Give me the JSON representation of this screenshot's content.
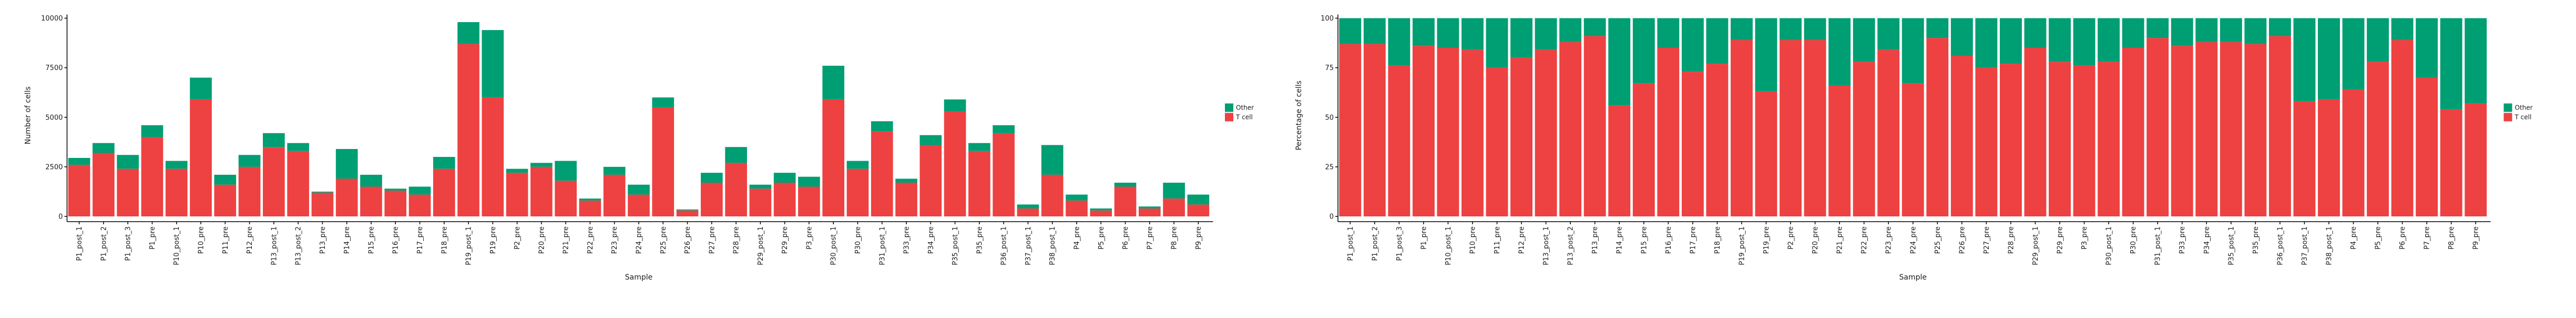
{
  "colors": {
    "other": "#009E73",
    "tcell": "#EE4141",
    "axis": "#000000"
  },
  "chart_data": [
    {
      "type": "bar",
      "stacked": true,
      "xlabel": "Sample",
      "ylabel": "Number of cells",
      "ylim": [
        0,
        10000
      ],
      "yticks": [
        0,
        2500,
        5000,
        7500,
        10000
      ],
      "legend": {
        "placement": "right",
        "entries": [
          "Other",
          "T cell"
        ]
      },
      "categories": [
        "P1_post_1",
        "P1_post_2",
        "P1_post_3",
        "P1_pre",
        "P10_post_1",
        "P10_pre",
        "P11_pre",
        "P12_pre",
        "P13_post_1",
        "P13_post_2",
        "P13_pre",
        "P14_pre",
        "P15_pre",
        "P16_pre",
        "P17_pre",
        "P18_pre",
        "P19_post_1",
        "P19_pre",
        "P2_pre",
        "P20_pre",
        "P21_pre",
        "P22_pre",
        "P23_pre",
        "P24_pre",
        "P25_pre",
        "P26_pre",
        "P27_pre",
        "P28_pre",
        "P29_post_1",
        "P29_pre",
        "P3_pre",
        "P30_post_1",
        "P30_pre",
        "P31_post_1",
        "P33_pre",
        "P34_pre",
        "P35_post_1",
        "P35_pre",
        "P36_post_1",
        "P37_post_1",
        "P38_post_1",
        "P4_pre",
        "P5_pre",
        "P6_pre",
        "P7_pre",
        "P8_pre",
        "P9_pre"
      ],
      "series": [
        {
          "name": "T cell",
          "values": [
            2600,
            3200,
            2400,
            4000,
            2400,
            5900,
            1600,
            2500,
            3500,
            3300,
            1200,
            1900,
            1500,
            1300,
            1100,
            2400,
            8700,
            6000,
            2200,
            2500,
            1800,
            800,
            2100,
            1100,
            5500,
            300,
            1700,
            2700,
            1400,
            1700,
            1500,
            5900,
            2400,
            4300,
            1700,
            3600,
            5300,
            3300,
            4200,
            400,
            2100,
            800,
            300,
            1500,
            400,
            900,
            600
          ]
        },
        {
          "name": "Other",
          "values": [
            350,
            500,
            700,
            600,
            400,
            1100,
            500,
            600,
            700,
            400,
            50,
            1500,
            600,
            100,
            400,
            600,
            1100,
            3400,
            200,
            200,
            1000,
            100,
            400,
            500,
            500,
            50,
            500,
            800,
            200,
            500,
            500,
            1700,
            400,
            500,
            200,
            500,
            600,
            400,
            400,
            200,
            1500,
            300,
            100,
            200,
            100,
            800,
            500
          ]
        }
      ]
    },
    {
      "type": "bar",
      "stacked": true,
      "xlabel": "Sample",
      "ylabel": "Percentage of cells",
      "ylim": [
        0,
        100
      ],
      "yticks": [
        0,
        25,
        50,
        75,
        100
      ],
      "legend": {
        "placement": "right",
        "entries": [
          "Other",
          "T cell"
        ]
      },
      "categories": [
        "P1_post_1",
        "P1_post_2",
        "P1_post_3",
        "P1_pre",
        "P10_post_1",
        "P10_pre",
        "P11_pre",
        "P12_pre",
        "P13_post_1",
        "P13_post_2",
        "P13_pre",
        "P14_pre",
        "P15_pre",
        "P16_pre",
        "P17_pre",
        "P18_pre",
        "P19_post_1",
        "P19_pre",
        "P2_pre",
        "P20_pre",
        "P21_pre",
        "P22_pre",
        "P23_pre",
        "P24_pre",
        "P25_pre",
        "P26_pre",
        "P27_pre",
        "P28_pre",
        "P29_post_1",
        "P29_pre",
        "P3_pre",
        "P30_post_1",
        "P30_pre",
        "P31_post_1",
        "P33_pre",
        "P34_pre",
        "P35_post_1",
        "P35_pre",
        "P36_post_1",
        "P37_post_1",
        "P38_post_1",
        "P4_pre",
        "P5_pre",
        "P6_pre",
        "P7_pre",
        "P8_pre",
        "P9_pre"
      ],
      "series": [
        {
          "name": "T cell",
          "values": [
            87,
            87,
            76,
            86,
            85,
            84,
            75,
            80,
            84,
            88,
            91,
            56,
            67,
            85,
            73,
            77,
            89,
            63,
            89,
            89,
            66,
            78,
            84,
            67,
            90,
            81,
            75,
            77,
            85,
            78,
            76,
            78,
            85,
            90,
            86,
            88,
            88,
            87,
            91,
            58,
            59,
            64,
            78,
            89,
            70,
            54,
            57
          ]
        },
        {
          "name": "Other",
          "values": [
            13,
            13,
            24,
            14,
            15,
            16,
            25,
            20,
            16,
            12,
            9,
            44,
            33,
            15,
            27,
            23,
            11,
            37,
            11,
            11,
            34,
            22,
            16,
            33,
            10,
            19,
            25,
            23,
            15,
            22,
            24,
            22,
            15,
            10,
            14,
            12,
            12,
            13,
            9,
            42,
            41,
            36,
            22,
            11,
            30,
            46,
            43
          ]
        }
      ]
    }
  ]
}
